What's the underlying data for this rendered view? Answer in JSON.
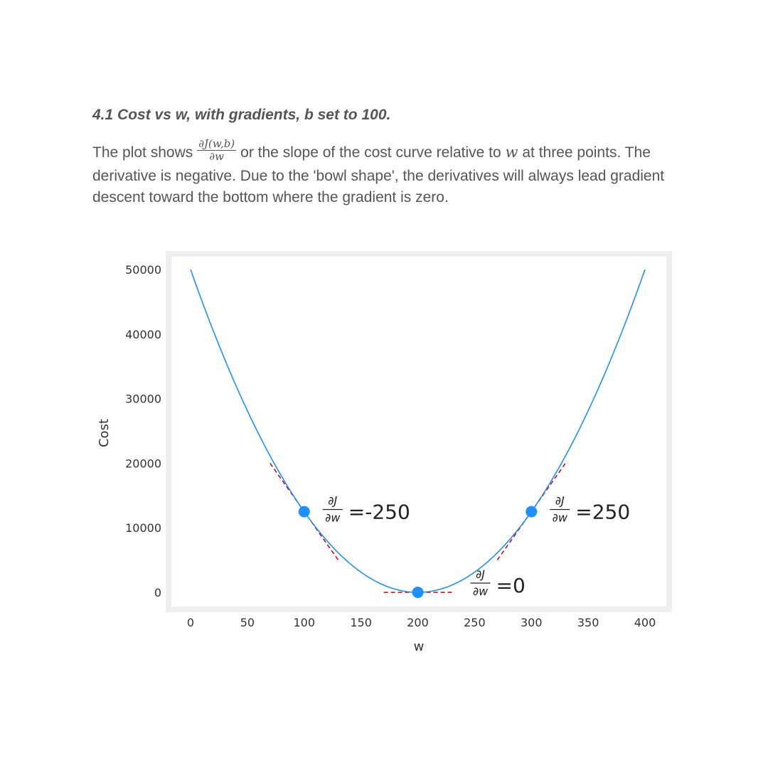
{
  "section": {
    "heading": "4.1 Cost vs w, with gradients, b set to 100.",
    "para_before": "The plot shows",
    "frac_num": "∂J(w,b)",
    "frac_den": "∂w",
    "para_mid": "or the slope of the cost curve relative to",
    "para_var": "w",
    "para_after": "at three points. The derivative is negative. Due to the 'bowl shape', the derivatives will always lead gradient descent toward the bottom where the gradient is zero."
  },
  "chart_data": {
    "type": "line",
    "title": "",
    "xlabel": "w",
    "ylabel": "Cost",
    "xlim": [
      0,
      400
    ],
    "ylim": [
      0,
      50000
    ],
    "xticks": [
      "0",
      "50",
      "100",
      "150",
      "200",
      "250",
      "300",
      "350",
      "400"
    ],
    "yticks": [
      "0",
      "10000",
      "20000",
      "30000",
      "40000",
      "50000"
    ],
    "grid": false,
    "curve": {
      "vertex_w": 200,
      "vertex_cost": 0,
      "cost_at_w0": 50000,
      "color": "#1e90ff"
    },
    "points": [
      {
        "w": 100,
        "cost": 12500,
        "label_num": "∂J",
        "label_den": "∂w",
        "label_value": "=-250",
        "slope": -250
      },
      {
        "w": 200,
        "cost": 0,
        "label_num": "∂J",
        "label_den": "∂w",
        "label_value": "=0",
        "slope": 0
      },
      {
        "w": 300,
        "cost": 12500,
        "label_num": "∂J",
        "label_den": "∂w",
        "label_value": "=250",
        "slope": 250
      }
    ],
    "point_color": "#1e90ff",
    "tangent_color": "#cc0000"
  }
}
